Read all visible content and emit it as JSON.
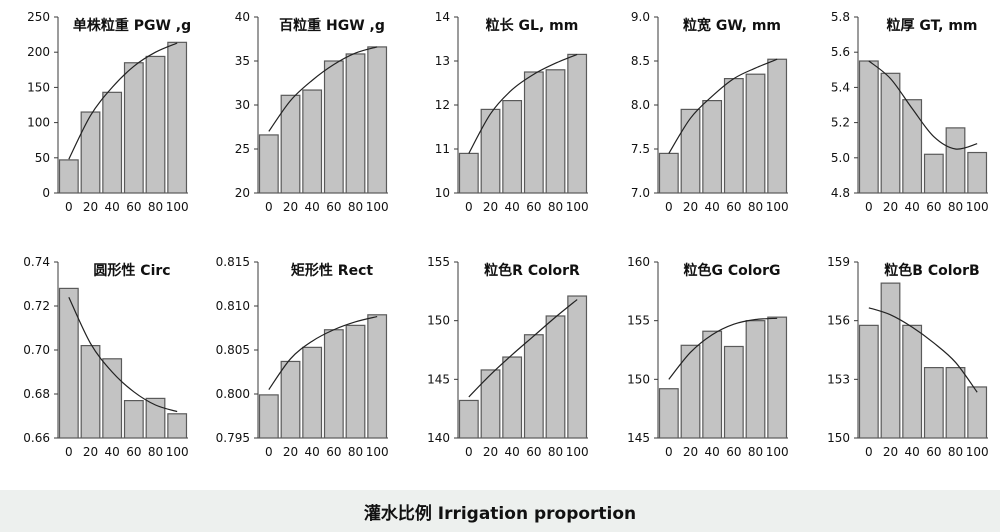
{
  "xlabel": "灌水比例  Irrigation proportion",
  "colors": {
    "bar_fill": "#c3c3c3",
    "bar_stroke": "#5a5a5a",
    "axis": "#3a3a3a",
    "trend": "#222222"
  },
  "chart_data": [
    {
      "type": "bar",
      "title": "单株粒重 PGW ,g",
      "categories": [
        "0",
        "20",
        "40",
        "60",
        "80",
        "100"
      ],
      "values": [
        47,
        115,
        143,
        185,
        194,
        214
      ],
      "ylim": [
        0,
        250
      ],
      "yticks": [
        "0",
        "50",
        "100",
        "150",
        "200",
        "250"
      ],
      "trend": [
        48,
        110,
        150,
        180,
        200,
        213
      ]
    },
    {
      "type": "bar",
      "title": "百粒重 HGW ,g",
      "categories": [
        "0",
        "20",
        "40",
        "60",
        "80",
        "100"
      ],
      "values": [
        26.6,
        31.1,
        31.7,
        35.0,
        35.8,
        36.6
      ],
      "ylim": [
        20,
        40
      ],
      "yticks": [
        "20",
        "25",
        "30",
        "35",
        "40"
      ],
      "trend": [
        27.0,
        30.5,
        32.8,
        34.6,
        35.9,
        36.6
      ]
    },
    {
      "type": "bar",
      "title": "粒长 GL, mm",
      "categories": [
        "0",
        "20",
        "40",
        "60",
        "80",
        "100"
      ],
      "values": [
        10.9,
        11.9,
        12.1,
        12.75,
        12.8,
        13.15
      ],
      "ylim": [
        10,
        14
      ],
      "yticks": [
        "10",
        "11",
        "12",
        "13",
        "14"
      ],
      "trend": [
        10.9,
        11.8,
        12.35,
        12.7,
        12.95,
        13.15
      ]
    },
    {
      "type": "bar",
      "title": "粒宽 GW, mm",
      "categories": [
        "0",
        "20",
        "40",
        "60",
        "80",
        "100"
      ],
      "values": [
        7.45,
        7.95,
        8.05,
        8.3,
        8.35,
        8.52
      ],
      "ylim": [
        7,
        9
      ],
      "yticks": [
        "7.0",
        "7.5",
        "8.0",
        "8.5",
        "9.0"
      ],
      "trend": [
        7.45,
        7.85,
        8.1,
        8.3,
        8.42,
        8.52
      ]
    },
    {
      "type": "bar",
      "title": "粒厚 GT, mm",
      "categories": [
        "0",
        "20",
        "40",
        "60",
        "80",
        "100"
      ],
      "values": [
        5.55,
        5.48,
        5.33,
        5.02,
        5.17,
        5.03
      ],
      "ylim": [
        4.8,
        5.8
      ],
      "yticks": [
        "4.8",
        "5.0",
        "5.2",
        "5.4",
        "5.6",
        "5.8"
      ],
      "trend": [
        5.55,
        5.45,
        5.28,
        5.12,
        5.05,
        5.08
      ]
    },
    {
      "type": "bar",
      "title": "圆形性 Circ",
      "categories": [
        "0",
        "20",
        "40",
        "60",
        "80",
        "100"
      ],
      "values": [
        0.728,
        0.702,
        0.696,
        0.677,
        0.678,
        0.671
      ],
      "ylim": [
        0.66,
        0.74
      ],
      "yticks": [
        "0.66",
        "0.68",
        "0.70",
        "0.72",
        "0.74"
      ],
      "trend": [
        0.724,
        0.703,
        0.69,
        0.681,
        0.675,
        0.672
      ]
    },
    {
      "type": "bar",
      "title": "矩形性  Rect",
      "categories": [
        "0",
        "20",
        "40",
        "60",
        "80",
        "100"
      ],
      "values": [
        0.7999,
        0.8037,
        0.8053,
        0.8073,
        0.8078,
        0.809
      ],
      "ylim": [
        0.795,
        0.815
      ],
      "yticks": [
        "0.795",
        "0.800",
        "0.805",
        "0.810",
        "0.815"
      ],
      "trend": [
        0.8005,
        0.804,
        0.806,
        0.8073,
        0.8082,
        0.8088
      ]
    },
    {
      "type": "bar",
      "title": "粒色R ColorR",
      "categories": [
        "0",
        "20",
        "40",
        "60",
        "80",
        "100"
      ],
      "values": [
        143.2,
        145.8,
        146.9,
        148.8,
        150.4,
        152.1
      ],
      "ylim": [
        140,
        155
      ],
      "yticks": [
        "140",
        "145",
        "150",
        "155"
      ],
      "trend": [
        143.5,
        145.4,
        147.1,
        148.7,
        150.3,
        151.8
      ]
    },
    {
      "type": "bar",
      "title": "粒色G  ColorG",
      "categories": [
        "0",
        "20",
        "40",
        "60",
        "80",
        "100"
      ],
      "values": [
        149.2,
        152.9,
        154.1,
        152.8,
        155.0,
        155.3
      ],
      "ylim": [
        145,
        160
      ],
      "yticks": [
        "145",
        "150",
        "155",
        "160"
      ],
      "trend": [
        150.0,
        152.3,
        153.8,
        154.7,
        155.1,
        155.2
      ]
    },
    {
      "type": "bar",
      "title": "粒色B  ColorB",
      "categories": [
        "0",
        "20",
        "40",
        "60",
        "80",
        "100"
      ],
      "values": [
        156.4,
        158.8,
        156.4,
        154.0,
        154.0,
        152.9
      ],
      "ylim": [
        150,
        160
      ],
      "yticks": [
        "150",
        "153",
        "156",
        "159"
      ],
      "trend": [
        157.4,
        157.0,
        156.3,
        155.4,
        154.3,
        152.6
      ]
    }
  ]
}
